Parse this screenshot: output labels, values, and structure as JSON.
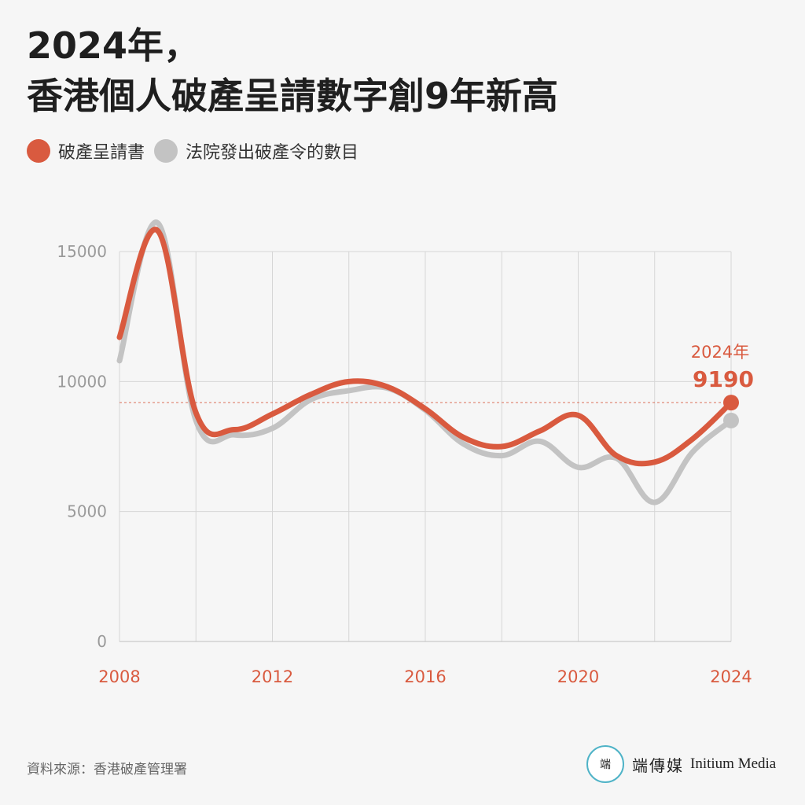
{
  "title": {
    "line1": "2024年，",
    "line2": "香港個人破產呈請數字創9年新高"
  },
  "legend": [
    {
      "label": "破產呈請書",
      "color": "#d95a3f"
    },
    {
      "label": "法院發出破產令的數目",
      "color": "#c3c3c3"
    }
  ],
  "annotation": {
    "year_label": "2024年",
    "value_label": "9190"
  },
  "source": "資料來源：香港破產管理署",
  "brand": {
    "logo_glyph": "端",
    "name_cn": "端傳媒",
    "name_en": "Initium Media"
  },
  "chart_data": {
    "type": "line",
    "x": [
      2008,
      2009,
      2010,
      2011,
      2012,
      2013,
      2014,
      2015,
      2016,
      2017,
      2018,
      2019,
      2020,
      2021,
      2022,
      2023,
      2024
    ],
    "series": [
      {
        "name": "破產呈請書",
        "color": "#d95a3f",
        "values": [
          11700,
          15800,
          8800,
          8150,
          8750,
          9500,
          10000,
          9800,
          8950,
          7850,
          7500,
          8100,
          8700,
          7150,
          6900,
          7800,
          9190
        ]
      },
      {
        "name": "法院發出破產令的數目",
        "color": "#c3c3c3",
        "values": [
          10800,
          16100,
          8500,
          7950,
          8200,
          9300,
          9650,
          9750,
          8900,
          7600,
          7150,
          7700,
          6700,
          7050,
          5350,
          7300,
          8500
        ]
      }
    ],
    "reference_line": 9190,
    "xticks": [
      "2008",
      "2012",
      "2016",
      "2020",
      "2024"
    ],
    "yticks": [
      "0",
      "5000",
      "10000",
      "15000"
    ],
    "xlim": [
      2008,
      2024
    ],
    "ylim": [
      0,
      15000
    ],
    "grid": true
  }
}
